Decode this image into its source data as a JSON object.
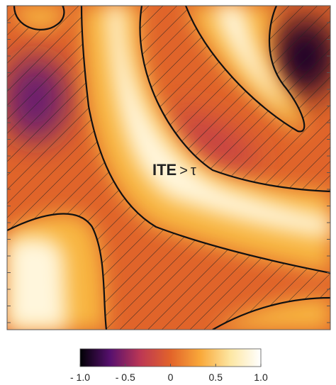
{
  "chart_data": {
    "type": "contour",
    "annotation": {
      "label": "ITE",
      "op": ">",
      "symbol": "τ"
    },
    "colorbar": {
      "clim": [
        -1,
        1
      ],
      "colors": [
        "#000004",
        "#57106e",
        "#bc3754",
        "#e2632a",
        "#f9a93a",
        "#fde7a4",
        "#ffffff"
      ],
      "ticks": [
        {
          "value": -1,
          "label": "- 1.0"
        },
        {
          "value": -0.5,
          "label": "- 0.5"
        },
        0,
        0.5,
        {
          "value": 1,
          "label": "1.0"
        }
      ]
    }
  }
}
